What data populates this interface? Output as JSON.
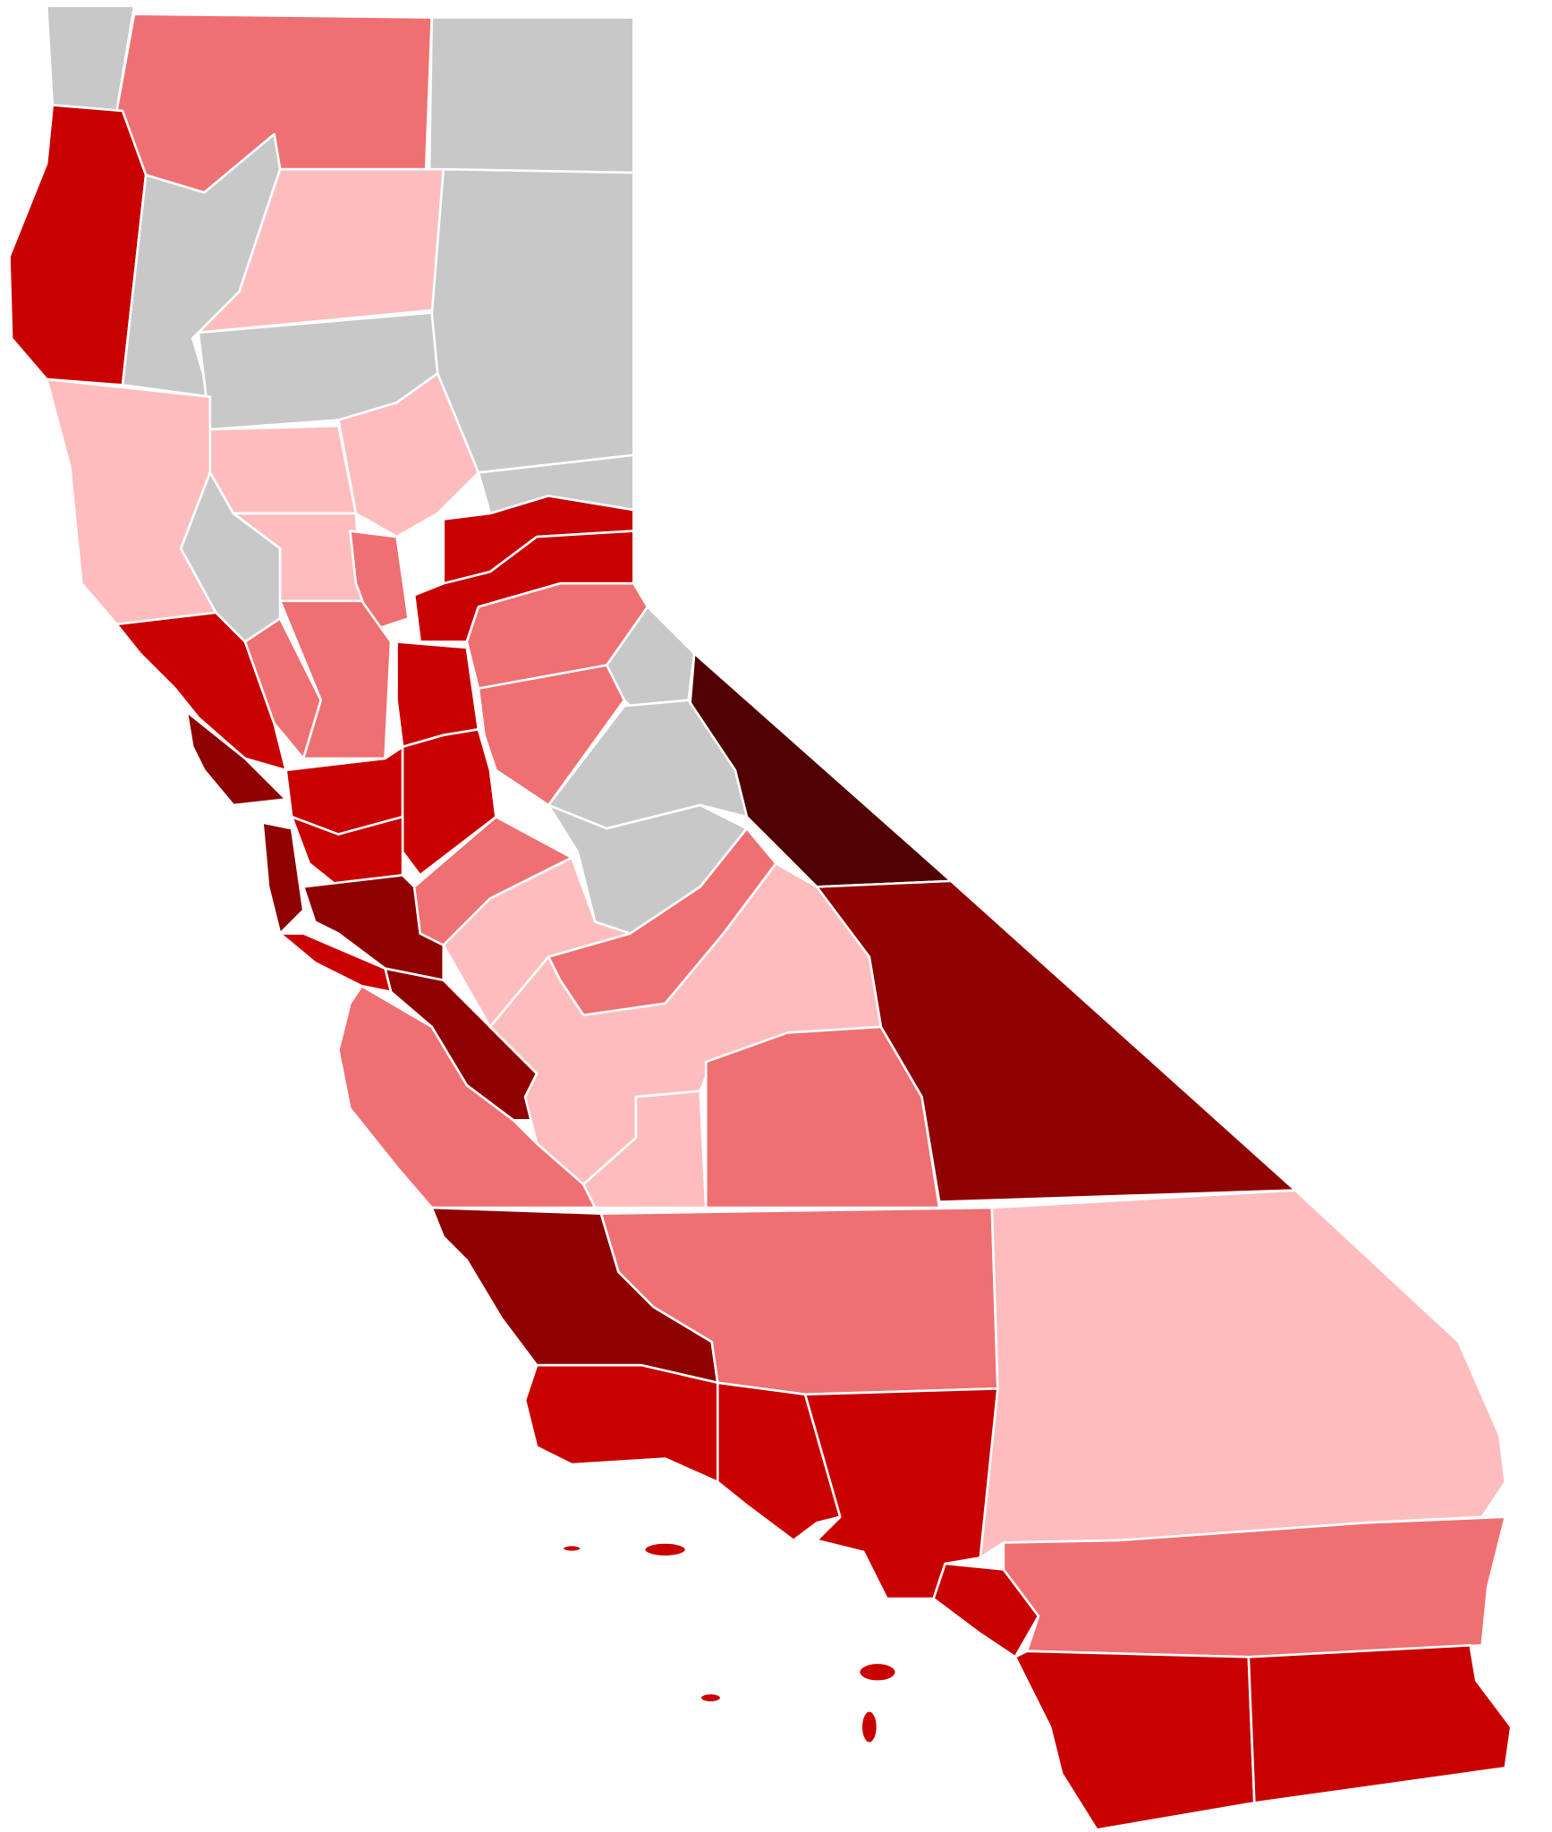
{
  "map": {
    "palette": [
      "#c8c8c8",
      "#fdbdbe",
      "#ee7073",
      "#c90000",
      "#8f0000",
      "#500000"
    ]
  }
}
